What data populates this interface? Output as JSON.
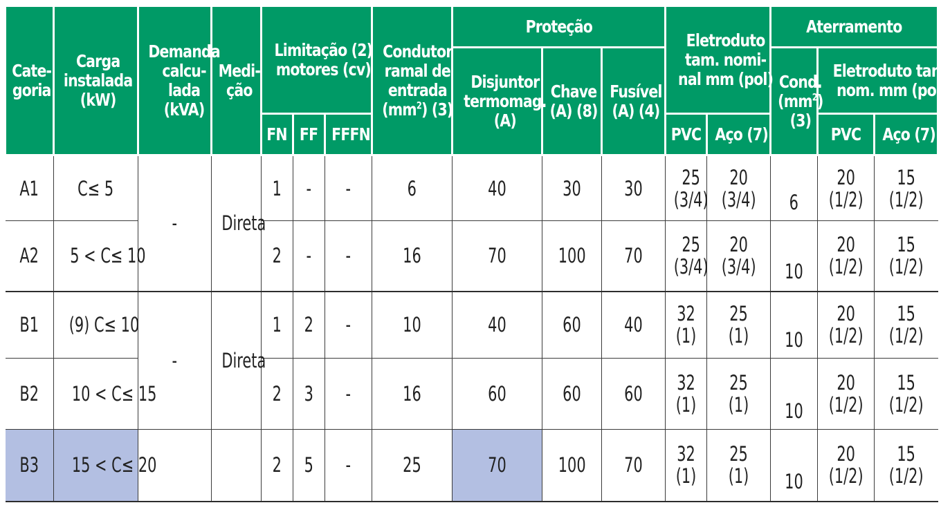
{
  "colors": {
    "header_bg": "#009a66",
    "header_text": "#ffffff",
    "highlight": "#b3bfe2",
    "body_text": "#222222"
  },
  "header": {
    "categoria": [
      "Cate-",
      "goria"
    ],
    "carga": [
      "Carga",
      "instalada",
      "(kW)"
    ],
    "demanda": [
      "Demanda",
      "calcu-",
      "lada",
      "(kVA)"
    ],
    "medicao": [
      "Medi-",
      "ção"
    ],
    "limitacao": [
      "Limitação (2)",
      "motores (cv)"
    ],
    "fn": "FN",
    "ff": "FF",
    "fffn": "FFFN",
    "condutor": [
      "Condutor",
      "ramal de",
      "entrada",
      "(mm",
      "2",
      ") (3)"
    ],
    "protecao": "Proteção",
    "disjuntor": [
      "Disjuntor",
      "termomag.",
      "(A)"
    ],
    "chave": [
      "Chave",
      "(A) (8)"
    ],
    "fusivel": [
      "Fusível",
      "(A) (4)"
    ],
    "eletroduto": [
      "Eletroduto",
      "tam. nomi-",
      "nal mm (pol)"
    ],
    "pvc": "PVC",
    "aco": "Aço (7)",
    "aterramento": "Aterramento",
    "cond": [
      "Cond.",
      "(mm",
      "2",
      ")",
      "(3)"
    ],
    "eletroduto_at": [
      "Eletroduto tam.",
      "nom. mm (pol)"
    ],
    "pvc_at": "PVC",
    "aco_at": "Aço (7)"
  },
  "rows": [
    {
      "cat": "A1",
      "carga": "C≤ 5",
      "fn": "1",
      "ff": "-",
      "fffn": "-",
      "condutor": "6",
      "disjuntor": "40",
      "chave": "30",
      "fusivel": "30",
      "pvc": [
        "25",
        "(3/4)"
      ],
      "aco": [
        "20",
        "(3/4)"
      ],
      "cond": "6",
      "pvc_at": [
        "20",
        "(1/2)"
      ],
      "aco_at": [
        "15",
        "(1/2)"
      ]
    },
    {
      "cat": "A2",
      "carga": "5 < C≤ 10",
      "fn": "2",
      "ff": "-",
      "fffn": "-",
      "condutor": "16",
      "disjuntor": "70",
      "chave": "100",
      "fusivel": "70",
      "pvc": [
        "25",
        "(3/4)"
      ],
      "aco": [
        "20",
        "(3/4)"
      ],
      "cond": "10",
      "pvc_at": [
        "20",
        "(1/2)"
      ],
      "aco_at": [
        "15",
        "(1/2)"
      ]
    },
    {
      "cat": "B1",
      "carga": "(9) C≤ 10",
      "fn": "1",
      "ff": "2",
      "fffn": "-",
      "condutor": "10",
      "disjuntor": "40",
      "chave": "60",
      "fusivel": "40",
      "pvc": [
        "32",
        "(1)"
      ],
      "aco": [
        "25",
        "(1)"
      ],
      "cond": "10",
      "pvc_at": [
        "20",
        "(1/2)"
      ],
      "aco_at": [
        "15",
        "(1/2)"
      ]
    },
    {
      "cat": "B2",
      "carga": "10 < C≤ 15",
      "fn": "2",
      "ff": "3",
      "fffn": "-",
      "condutor": "16",
      "disjuntor": "60",
      "chave": "60",
      "fusivel": "60",
      "pvc": [
        "32",
        "(1)"
      ],
      "aco": [
        "25",
        "(1)"
      ],
      "cond": "10",
      "pvc_at": [
        "20",
        "(1/2)"
      ],
      "aco_at": [
        "15",
        "(1/2)"
      ]
    },
    {
      "cat": "B3",
      "carga": "15 < C≤ 20",
      "fn": "2",
      "ff": "5",
      "fffn": "-",
      "condutor": "25",
      "disjuntor": "70",
      "chave": "100",
      "fusivel": "70",
      "pvc": [
        "32",
        "(1)"
      ],
      "aco": [
        "25",
        "(1)"
      ],
      "cond": "10",
      "pvc_at": [
        "20",
        "(1/2)"
      ],
      "aco_at": [
        "15",
        "(1/2)"
      ]
    }
  ],
  "groups": {
    "a": {
      "demanda": "-",
      "medicao": "Direta"
    },
    "b": {
      "demanda": "-",
      "medicao": "Direta"
    }
  }
}
